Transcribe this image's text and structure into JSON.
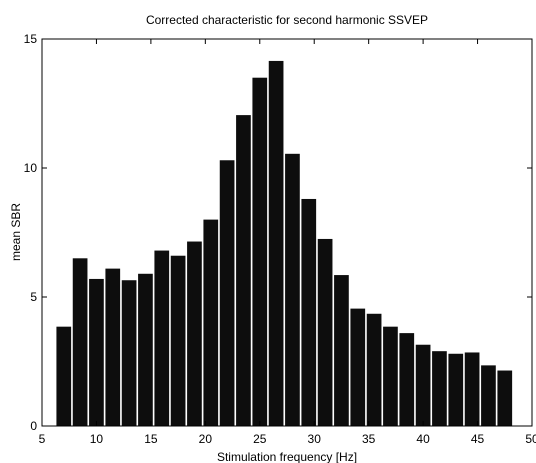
{
  "chart_data": {
    "type": "bar",
    "title": "Corrected characteristic for second harmonic SSVEP",
    "xlabel": "Stimulation frequency [Hz]",
    "ylabel": "mean SBR",
    "xlim": [
      5,
      50
    ],
    "ylim": [
      0,
      15
    ],
    "xticks": [
      5,
      10,
      15,
      20,
      25,
      30,
      35,
      40,
      45,
      50
    ],
    "yticks": [
      0,
      5,
      10,
      15
    ],
    "grid": false,
    "bar_width": 1.35,
    "bar_color": "#0d0d0d",
    "x": [
      7,
      8.5,
      10,
      11.5,
      13,
      14.5,
      16,
      17.5,
      19,
      20.5,
      22,
      23.5,
      25,
      26.5,
      28,
      29.5,
      31,
      32.5,
      34,
      35.5,
      37,
      38.5,
      40,
      41.5,
      43,
      44.5,
      46,
      47.5
    ],
    "values": [
      3.85,
      6.5,
      5.7,
      6.1,
      5.65,
      5.9,
      6.8,
      6.6,
      7.15,
      8.0,
      10.3,
      12.05,
      13.5,
      14.15,
      10.55,
      8.8,
      7.25,
      5.85,
      4.55,
      4.35,
      3.85,
      3.6,
      3.15,
      2.9,
      2.8,
      2.85,
      2.35,
      2.15
    ]
  }
}
